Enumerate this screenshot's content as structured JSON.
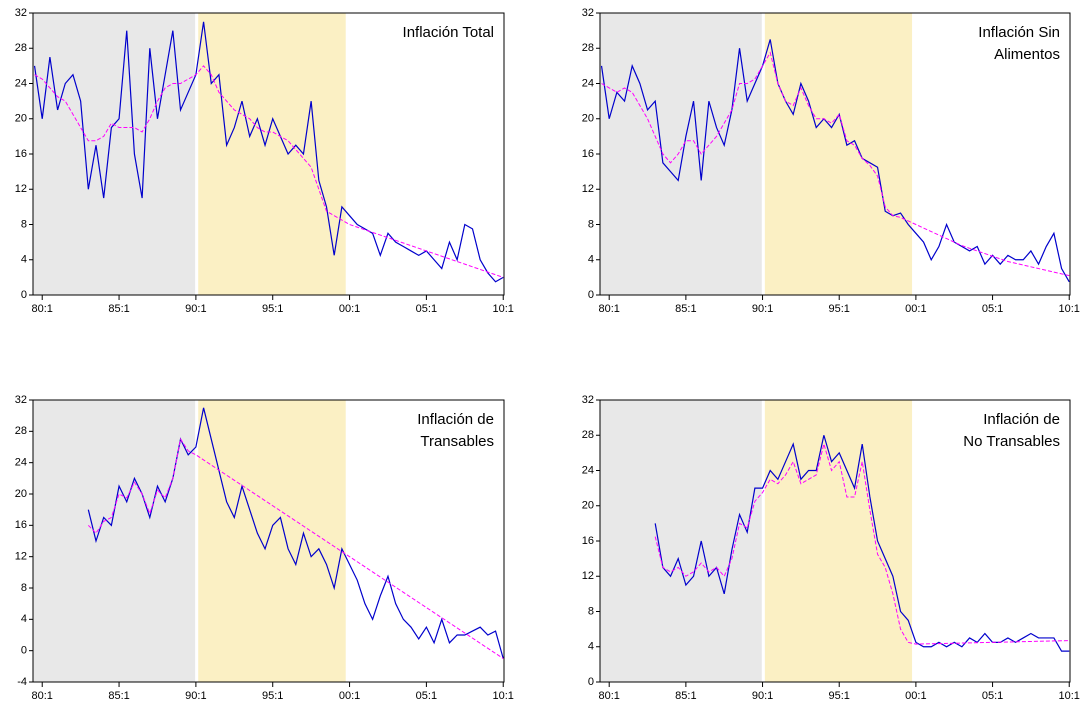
{
  "chart_data": [
    {
      "type": "line",
      "title": [
        "Inflación Total"
      ],
      "x": [
        1979.5,
        1980,
        1980.5,
        1981,
        1981.5,
        1982,
        1982.5,
        1983,
        1983.5,
        1984,
        1984.5,
        1985,
        1985.5,
        1986,
        1986.5,
        1987,
        1987.5,
        1988,
        1988.5,
        1989,
        1989.5,
        1990,
        1990.5,
        1991,
        1991.5,
        1992,
        1992.5,
        1993,
        1993.5,
        1994,
        1994.5,
        1995,
        1995.5,
        1996,
        1996.5,
        1997,
        1997.5,
        1998,
        1998.5,
        1999,
        1999.5,
        2000,
        2000.5,
        2001,
        2001.5,
        2002,
        2002.5,
        2003,
        2003.5,
        2004,
        2004.5,
        2005,
        2005.5,
        2006,
        2006.5,
        2007,
        2007.5,
        2008,
        2008.5,
        2009,
        2009.5,
        2010
      ],
      "series": [
        {
          "color": "#0000cc",
          "dashed": false,
          "values": [
            26,
            20,
            27,
            21,
            24,
            25,
            22,
            12,
            17,
            11,
            19,
            20,
            30,
            16,
            11,
            28,
            20,
            25,
            30,
            21,
            23,
            25,
            31,
            24,
            25,
            17,
            19,
            22,
            18,
            20,
            17,
            20,
            18,
            16,
            17,
            16,
            22,
            13,
            10,
            4.5,
            10,
            9,
            8,
            7.5,
            7,
            4.5,
            7,
            6,
            5.5,
            5,
            4.5,
            5,
            4,
            3,
            6,
            4,
            8,
            7.5,
            4,
            2.5,
            1.5,
            2
          ]
        },
        {
          "color": "#ff00ff",
          "dashed": true,
          "values": [
            25,
            24.5,
            23.5,
            22.5,
            22,
            20.5,
            19,
            17.5,
            17.5,
            18,
            19.5,
            19,
            19,
            19,
            18.5,
            20,
            22,
            23.5,
            24,
            24,
            24.5,
            25,
            26,
            25,
            23,
            22,
            21,
            20.5,
            20,
            19,
            18.5,
            18.5,
            18,
            17.5,
            16.5,
            15.5,
            14.5,
            12,
            9.5,
            9,
            8.5,
            8,
            7.7,
            7.4,
            7.1,
            6.8,
            6.5,
            6.2,
            5.9,
            5.6,
            5.3,
            5,
            4.7,
            4.4,
            4.1,
            3.8,
            3.5,
            3.2,
            2.9,
            2.6,
            2.3,
            2
          ]
        }
      ],
      "xlim": [
        1979.4,
        2010.05
      ],
      "xticks": [
        {
          "value": 1980,
          "label": "80:1"
        },
        {
          "value": 1985,
          "label": "85:1"
        },
        {
          "value": 1990,
          "label": "90:1"
        },
        {
          "value": 1995,
          "label": "95:1"
        },
        {
          "value": 2000,
          "label": "00:1"
        },
        {
          "value": 2005,
          "label": "05:1"
        },
        {
          "value": 2010,
          "label": "10:1"
        }
      ],
      "ylim": [
        0,
        32
      ],
      "yticks": [
        0,
        4,
        8,
        12,
        16,
        20,
        24,
        28,
        32
      ]
    },
    {
      "type": "line",
      "title": [
        "Inflación Sin",
        "Alimentos"
      ],
      "x": [
        1979.5,
        1980,
        1980.5,
        1981,
        1981.5,
        1982,
        1982.5,
        1983,
        1983.5,
        1984,
        1984.5,
        1985,
        1985.5,
        1986,
        1986.5,
        1987,
        1987.5,
        1988,
        1988.5,
        1989,
        1989.5,
        1990,
        1990.5,
        1991,
        1991.5,
        1992,
        1992.5,
        1993,
        1993.5,
        1994,
        1994.5,
        1995,
        1995.5,
        1996,
        1996.5,
        1997,
        1997.5,
        1998,
        1998.5,
        1999,
        1999.5,
        2000,
        2000.5,
        2001,
        2001.5,
        2002,
        2002.5,
        2003,
        2003.5,
        2004,
        2004.5,
        2005,
        2005.5,
        2006,
        2006.5,
        2007,
        2007.5,
        2008,
        2008.5,
        2009,
        2009.5,
        2010
      ],
      "series": [
        {
          "color": "#0000cc",
          "dashed": false,
          "values": [
            26,
            20,
            23,
            22,
            26,
            24,
            21,
            22,
            15,
            14,
            13,
            18,
            22,
            13,
            22,
            19,
            17,
            21,
            28,
            22,
            24,
            26,
            29,
            24,
            22,
            20.5,
            24,
            22,
            19,
            20,
            19,
            20.5,
            17,
            17.5,
            15.5,
            15,
            14.5,
            9.5,
            9,
            9.3,
            8,
            7,
            6,
            4,
            5.5,
            8,
            6,
            5.5,
            5,
            5.5,
            3.5,
            4.5,
            3.5,
            4.5,
            4,
            4,
            5,
            3.5,
            5.5,
            7,
            3,
            1.5
          ]
        },
        {
          "color": "#ff00ff",
          "dashed": true,
          "values": [
            24,
            23.5,
            23,
            23.5,
            23,
            21.5,
            20,
            18,
            16,
            15,
            16,
            17.5,
            17.5,
            16,
            17,
            18,
            19.5,
            21,
            24,
            24,
            24.5,
            26,
            27.5,
            24,
            22,
            21.5,
            23.5,
            21.5,
            20,
            20,
            19.5,
            20.5,
            17.5,
            17,
            15.5,
            14.7,
            13.5,
            10,
            9,
            8.8,
            8.4,
            8,
            7.6,
            7.2,
            6.8,
            6.4,
            6,
            5.6,
            5.3,
            5,
            4.7,
            4.4,
            4.1,
            3.8,
            3.6,
            3.4,
            3.2,
            3,
            2.8,
            2.6,
            2.4,
            2.2
          ]
        }
      ],
      "xlim": [
        1979.4,
        2010.05
      ],
      "xticks": [
        {
          "value": 1980,
          "label": "80:1"
        },
        {
          "value": 1985,
          "label": "85:1"
        },
        {
          "value": 1990,
          "label": "90:1"
        },
        {
          "value": 1995,
          "label": "95:1"
        },
        {
          "value": 2000,
          "label": "00:1"
        },
        {
          "value": 2005,
          "label": "05:1"
        },
        {
          "value": 2010,
          "label": "10:1"
        }
      ],
      "ylim": [
        0,
        32
      ],
      "yticks": [
        0,
        4,
        8,
        12,
        16,
        20,
        24,
        28,
        32
      ]
    },
    {
      "type": "line",
      "title": [
        "Inflación de",
        "Transables"
      ],
      "x": [
        1979.5,
        1980,
        1980.5,
        1981,
        1981.5,
        1982,
        1982.5,
        1983,
        1983.5,
        1984,
        1984.5,
        1985,
        1985.5,
        1986,
        1986.5,
        1987,
        1987.5,
        1988,
        1988.5,
        1989,
        1989.5,
        1990,
        1990.5,
        1991,
        1991.5,
        1992,
        1992.5,
        1993,
        1993.5,
        1994,
        1994.5,
        1995,
        1995.5,
        1996,
        1996.5,
        1997,
        1997.5,
        1998,
        1998.5,
        1999,
        1999.5,
        2000,
        2000.5,
        2001,
        2001.5,
        2002,
        2002.5,
        2003,
        2003.5,
        2004,
        2004.5,
        2005,
        2005.5,
        2006,
        2006.5,
        2007,
        2007.5,
        2008,
        2008.5,
        2009,
        2009.5,
        2010
      ],
      "series": [
        {
          "color": "#0000cc",
          "dashed": false,
          "values": [
            null,
            null,
            null,
            null,
            null,
            null,
            null,
            18,
            14,
            17,
            16,
            21,
            19,
            22,
            20,
            17,
            21,
            19,
            22,
            27,
            25,
            26,
            31,
            27,
            23,
            19,
            17,
            21,
            18,
            15,
            13,
            16,
            17,
            13,
            11,
            15,
            12,
            13,
            11,
            8,
            13,
            11,
            9,
            6,
            4,
            7,
            9.5,
            6,
            4,
            3,
            1.5,
            3,
            1,
            4,
            1,
            2,
            2,
            2.5,
            3,
            2,
            2.5,
            -1
          ]
        },
        {
          "color": "#ff00ff",
          "dashed": true,
          "values": [
            null,
            null,
            null,
            null,
            null,
            null,
            null,
            16,
            15,
            16.5,
            17,
            20,
            19.5,
            21.5,
            20,
            17.5,
            20.5,
            19.5,
            22,
            27,
            25.5,
            25,
            24.35,
            23.7,
            23.05,
            22.4,
            21.75,
            21.1,
            20.45,
            19.8,
            19.15,
            18.5,
            17.85,
            17.2,
            16.55,
            15.9,
            15.25,
            14.6,
            13.95,
            13.3,
            12.65,
            12,
            11.35,
            10.7,
            10.05,
            9.4,
            8.75,
            8.1,
            7.45,
            6.8,
            6.15,
            5.5,
            4.85,
            4.2,
            3.55,
            2.9,
            2.25,
            1.6,
            0.95,
            0.3,
            -0.35,
            -1
          ]
        }
      ],
      "xlim": [
        1979.4,
        2010.05
      ],
      "xticks": [
        {
          "value": 1980,
          "label": "80:1"
        },
        {
          "value": 1985,
          "label": "85:1"
        },
        {
          "value": 1990,
          "label": "90:1"
        },
        {
          "value": 1995,
          "label": "95:1"
        },
        {
          "value": 2000,
          "label": "00:1"
        },
        {
          "value": 2005,
          "label": "05:1"
        },
        {
          "value": 2010,
          "label": "10:1"
        }
      ],
      "ylim": [
        -4,
        32
      ],
      "yticks": [
        -4,
        0,
        4,
        8,
        12,
        16,
        20,
        24,
        28,
        32
      ]
    },
    {
      "type": "line",
      "title": [
        "Inflación de",
        "No Transables"
      ],
      "x": [
        1979.5,
        1980,
        1980.5,
        1981,
        1981.5,
        1982,
        1982.5,
        1983,
        1983.5,
        1984,
        1984.5,
        1985,
        1985.5,
        1986,
        1986.5,
        1987,
        1987.5,
        1988,
        1988.5,
        1989,
        1989.5,
        1990,
        1990.5,
        1991,
        1991.5,
        1992,
        1992.5,
        1993,
        1993.5,
        1994,
        1994.5,
        1995,
        1995.5,
        1996,
        1996.5,
        1997,
        1997.5,
        1998,
        1998.5,
        1999,
        1999.5,
        2000,
        2000.5,
        2001,
        2001.5,
        2002,
        2002.5,
        2003,
        2003.5,
        2004,
        2004.5,
        2005,
        2005.5,
        2006,
        2006.5,
        2007,
        2007.5,
        2008,
        2008.5,
        2009,
        2009.5,
        2010
      ],
      "series": [
        {
          "color": "#0000cc",
          "dashed": false,
          "values": [
            null,
            null,
            null,
            null,
            null,
            null,
            null,
            18,
            13,
            12,
            14,
            11,
            12,
            16,
            12,
            13,
            10,
            15,
            19,
            17,
            22,
            22,
            24,
            23,
            25,
            27,
            23,
            24,
            24,
            28,
            25,
            26,
            24,
            22,
            27,
            21,
            16,
            14,
            12,
            8,
            7,
            4.5,
            4,
            4,
            4.5,
            4,
            4.5,
            4,
            5,
            4.5,
            5.5,
            4.5,
            4.5,
            5,
            4.5,
            5,
            5.5,
            5,
            5,
            5,
            3.5,
            3.5
          ]
        },
        {
          "color": "#ff00ff",
          "dashed": true,
          "values": [
            null,
            null,
            null,
            null,
            null,
            null,
            null,
            16.5,
            13,
            12.5,
            13,
            12,
            12.5,
            13.5,
            12.5,
            13,
            12,
            14,
            18,
            17.5,
            20.5,
            21.5,
            23,
            22.5,
            23.5,
            25,
            22.5,
            23,
            23.5,
            27,
            24,
            25,
            21,
            21,
            25,
            19.5,
            14.5,
            13,
            10,
            6,
            4.5,
            4.3,
            4.32,
            4.34,
            4.36,
            4.38,
            4.4,
            4.42,
            4.44,
            4.46,
            4.48,
            4.5,
            4.52,
            4.54,
            4.56,
            4.58,
            4.6,
            4.62,
            4.64,
            4.66,
            4.68,
            4.7
          ]
        }
      ],
      "xlim": [
        1979.4,
        2010.05
      ],
      "xticks": [
        {
          "value": 1980,
          "label": "80:1"
        },
        {
          "value": 1985,
          "label": "85:1"
        },
        {
          "value": 1990,
          "label": "90:1"
        },
        {
          "value": 1995,
          "label": "95:1"
        },
        {
          "value": 2000,
          "label": "00:1"
        },
        {
          "value": 2005,
          "label": "05:1"
        },
        {
          "value": 2010,
          "label": "10:1"
        }
      ],
      "ylim": [
        0,
        32
      ],
      "yticks": [
        0,
        4,
        8,
        12,
        16,
        20,
        24,
        28,
        32
      ]
    }
  ],
  "shading": [
    {
      "start": 1979.4,
      "end": 1989.95,
      "color": "#e8e8e8"
    },
    {
      "start": 1990.15,
      "end": 1999.75,
      "color": "#fbf0c4"
    }
  ]
}
